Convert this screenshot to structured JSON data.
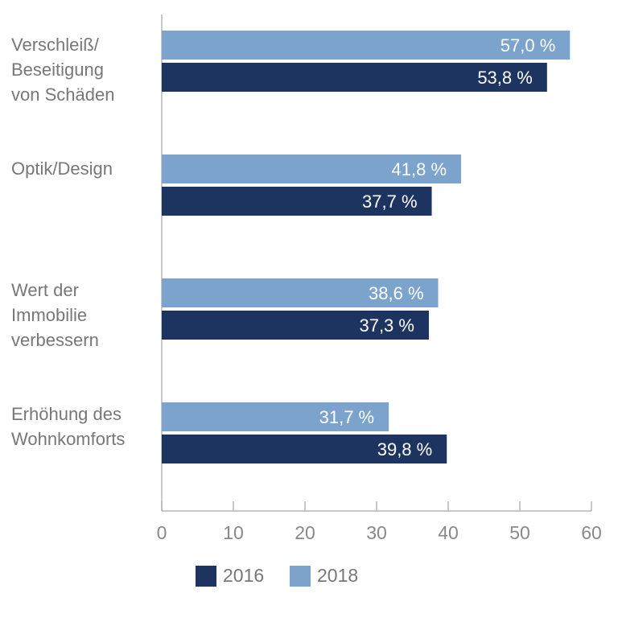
{
  "chart_data": {
    "type": "bar",
    "orientation": "horizontal",
    "categories": [
      "Verschleiß/\nBeseitigung\nvon Schäden",
      "Optik/Design",
      "Wert der\nImmobilie\nverbessern",
      "Erhöhung des\nWohnkomforts"
    ],
    "series": [
      {
        "name": "2018",
        "color": "#7ba3cb",
        "values": [
          57.0,
          41.8,
          38.6,
          31.7
        ],
        "labels": [
          "57,0 %",
          "41,8 %",
          "38,6 %",
          "31,7 %"
        ]
      },
      {
        "name": "2016",
        "color": "#1d3461",
        "values": [
          53.8,
          37.7,
          37.3,
          39.8
        ],
        "labels": [
          "53,8 %",
          "37,7 %",
          "37,3 %",
          "39,8 %"
        ]
      }
    ],
    "xlim": [
      0,
      60
    ],
    "xticks": [
      "0",
      "10",
      "20",
      "30",
      "40",
      "50",
      "60"
    ],
    "grid": false,
    "legend": [
      {
        "name": "2016",
        "color": "#1d3461"
      },
      {
        "name": "2018",
        "color": "#7ba3cb"
      }
    ],
    "legend_position": "bottom"
  }
}
